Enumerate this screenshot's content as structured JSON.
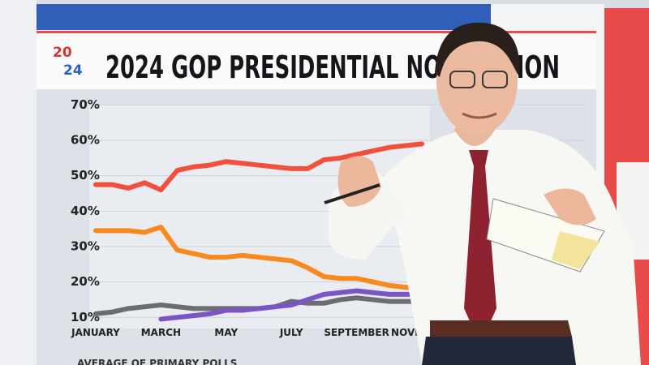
{
  "logo": {
    "top": "20",
    "bottom": "24"
  },
  "chart_data": {
    "type": "line",
    "title": "2024 GOP PRESIDENTIAL NOMINATION",
    "subtitle": "AVERAGE OF PRIMARY POLLS",
    "categories": [
      "JANUARY",
      null,
      null,
      null,
      "MARCH",
      null,
      null,
      null,
      "MAY",
      null,
      null,
      null,
      "JULY",
      null,
      null,
      null,
      "SEPTEMBER",
      null,
      null,
      null,
      "NOVEMBER"
    ],
    "ylim": [
      8,
      71
    ],
    "yticks": [
      {
        "value": 10,
        "label": "10%"
      },
      {
        "value": 20,
        "label": "20%"
      },
      {
        "value": 30,
        "label": "30%"
      },
      {
        "value": 40,
        "label": "40%"
      },
      {
        "value": 50,
        "label": "50%"
      },
      {
        "value": 60,
        "label": "60%"
      },
      {
        "value": 70,
        "label": "70%"
      }
    ],
    "grid": true,
    "series": [
      {
        "color": "#f0503c",
        "values": [
          47.5,
          47.5,
          46.5,
          48,
          46,
          51.5,
          52.5,
          53,
          54,
          53.5,
          53,
          52.5,
          52,
          52,
          54.5,
          55,
          56,
          57,
          58,
          58.5,
          59
        ]
      },
      {
        "color": "#f7891f",
        "values": [
          34.5,
          34.5,
          34.5,
          34,
          35.5,
          29,
          28,
          27,
          27,
          27.5,
          27,
          26.5,
          26,
          24,
          21.5,
          21,
          21,
          20,
          19,
          18.5,
          18
        ]
      },
      {
        "color": "#6b6d73",
        "values": [
          11,
          11.5,
          12.5,
          13,
          13.5,
          13,
          12.5,
          12.5,
          12.5,
          12.5,
          12.5,
          13,
          14.5,
          14,
          14,
          15,
          15.5,
          15,
          14.5,
          14.5,
          14.5
        ]
      },
      {
        "color": "#7b55c4",
        "values": [
          null,
          null,
          null,
          null,
          9.5,
          10,
          10.5,
          11,
          12,
          12,
          12.5,
          13,
          13.5,
          15,
          16.5,
          17,
          17.5,
          17,
          16.5,
          16.5,
          16.5
        ]
      }
    ]
  }
}
